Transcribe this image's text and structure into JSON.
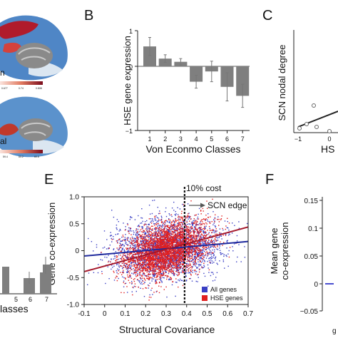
{
  "colors": {
    "bar": "#7f7f7f",
    "scatter_all": "#3a3fc4",
    "scatter_hse": "#e01f1f",
    "line_all": "#1f2a9e",
    "line_hse": "#a4172a",
    "brain_red": "#b01b2b",
    "brain_blue": "#4f86c6",
    "brain_light": "#dbe6f1",
    "brain_gray": "#8a8a8a"
  },
  "panels": {
    "B": "B",
    "C": "C",
    "E": "E",
    "F": "F"
  },
  "topleft": {
    "label_a": "n",
    "label_b": "al",
    "scale_a": [
      "0.677",
      "0.74",
      "0.808"
    ],
    "scale_b": [
      "59.4",
      "60.2",
      "60.6"
    ]
  },
  "leftbottom": {
    "xtick_labels": [
      "5",
      "6",
      "7"
    ],
    "xlabel": "lasses"
  },
  "panelC": {
    "ylabel": "SCN nodal degree",
    "xlabel": "HS",
    "xticks": [
      "−1",
      "0"
    ]
  },
  "panelE": {
    "annotation_cost": "10% cost",
    "annotation_edge": "SCN edge"
  },
  "panelF": {
    "ylabel_line1": "Mean gene",
    "ylabel_line2": "co-expression",
    "yticks": [
      "0.15",
      "0.1",
      "0.05",
      "0",
      "−0.05"
    ],
    "xtick_partial": "g"
  },
  "chart_data": [
    {
      "panel": "B",
      "type": "bar",
      "categories": [
        "1",
        "2",
        "3",
        "4",
        "5",
        "6",
        "7"
      ],
      "values": [
        0.31,
        0.12,
        0.07,
        -0.24,
        -0.08,
        -0.32,
        -0.46
      ],
      "errors": [
        0.14,
        0.06,
        0.05,
        0.1,
        0.16,
        0.22,
        0.18
      ],
      "xlabel": "Von Econmo Classes",
      "ylabel": "HSE gene expression",
      "ylim": [
        -1,
        1
      ],
      "yticks": [
        "−1",
        "0",
        "1"
      ]
    },
    {
      "panel": "E",
      "type": "scatter",
      "xlabel": "Structural Covariance",
      "ylabel": "Gene co-expression",
      "xlim": [
        -0.1,
        0.7
      ],
      "ylim": [
        -1.0,
        1.0
      ],
      "xticks": [
        "-0.1",
        "0",
        "0.1",
        "0.2",
        "0.3",
        "0.4",
        "0.5",
        "0.6",
        "0.7"
      ],
      "yticks": [
        "1.0",
        "0.5",
        "0",
        "-0.5",
        "-1.0"
      ],
      "threshold_x": 0.39,
      "legend_position": "bottom-right",
      "series": [
        {
          "name": "All genes",
          "fit": {
            "x": [
              -0.1,
              0.7
            ],
            "y": [
              -0.1,
              0.17
            ]
          }
        },
        {
          "name": "HSE genes",
          "fit": {
            "x": [
              -0.1,
              0.7
            ],
            "y": [
              -0.39,
              0.44
            ]
          }
        }
      ]
    }
  ]
}
